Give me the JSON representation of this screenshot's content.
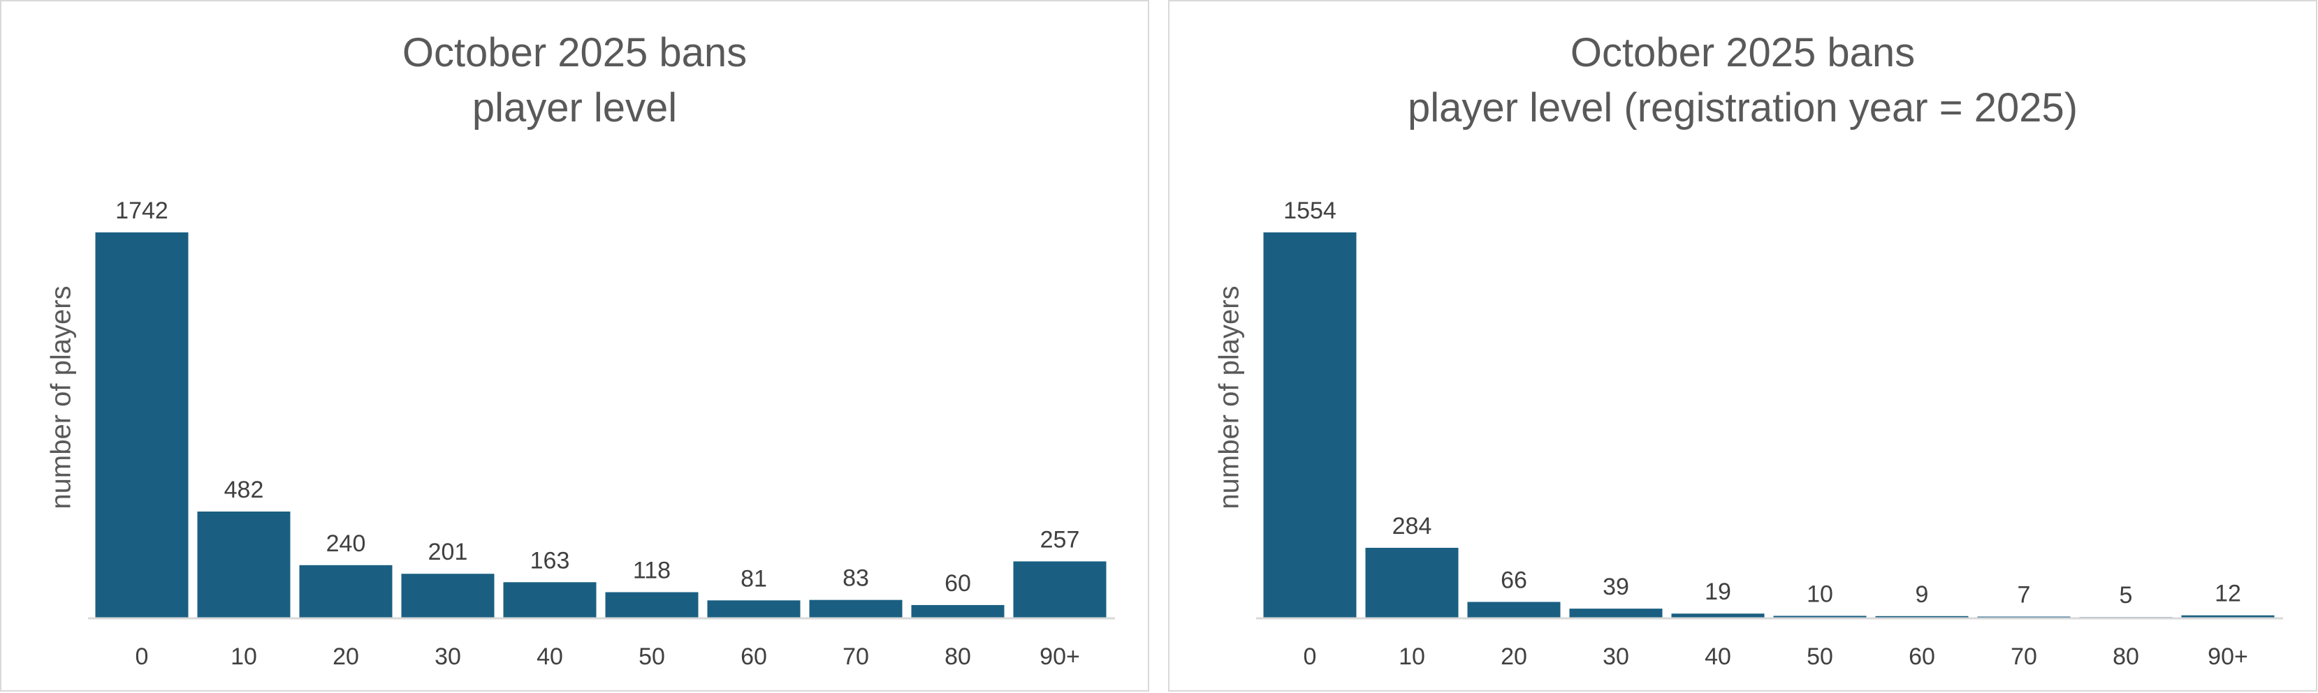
{
  "colors": {
    "bar": "#1a5f82",
    "axis": "#d9d9d9",
    "text": "#595959",
    "label": "#404040"
  },
  "chart_data": [
    {
      "type": "bar",
      "title": "October 2025 bans",
      "subtitle": "player level",
      "xlabel": "",
      "ylabel": "number of players",
      "categories": [
        "0",
        "10",
        "20",
        "30",
        "40",
        "50",
        "60",
        "70",
        "80",
        "90+"
      ],
      "values": [
        1742,
        482,
        240,
        201,
        163,
        118,
        81,
        83,
        60,
        257
      ],
      "ylim": [
        0,
        1742
      ],
      "grid": false,
      "data_labels": true
    },
    {
      "type": "bar",
      "title": "October 2025 bans",
      "subtitle": "player level (registration year = 2025)",
      "xlabel": "",
      "ylabel": "number of players",
      "categories": [
        "0",
        "10",
        "20",
        "30",
        "40",
        "50",
        "60",
        "70",
        "80",
        "90+"
      ],
      "values": [
        1554,
        284,
        66,
        39,
        19,
        10,
        9,
        7,
        5,
        12
      ],
      "ylim": [
        0,
        1554
      ],
      "grid": false,
      "data_labels": true
    }
  ]
}
